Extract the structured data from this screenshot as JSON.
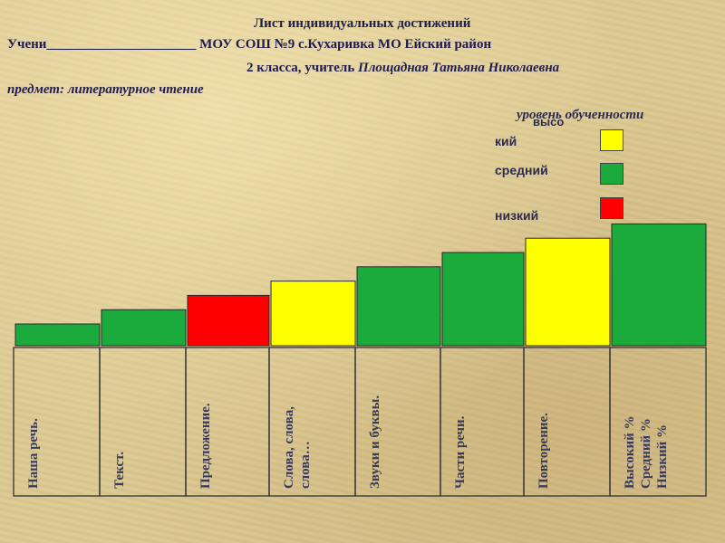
{
  "header": {
    "title": "Лист индивидуальных достижений",
    "line2": "Учени______________________ МОУ СОШ №9 с.Кухаривка МО Ейский район",
    "line3_prefix": "2 класса,   учитель ",
    "line3_teacher": "Площадная Татьяна Николаевна",
    "line4": "предмет: литературное чтение"
  },
  "legend": {
    "title": "уровень обученности",
    "high_part1": "высо",
    "high_part2": "кий",
    "mid": "средний",
    "low": "низкий"
  },
  "colors": {
    "high": "#ffff00",
    "mid": "#1aab3c",
    "low": "#ff0000"
  },
  "chart_data": {
    "type": "bar",
    "categories": [
      {
        "lines": [
          "Наша речь."
        ],
        "level": "mid",
        "value": 1
      },
      {
        "lines": [
          "Текст."
        ],
        "level": "mid",
        "value": 2
      },
      {
        "lines": [
          "Предложение."
        ],
        "level": "low",
        "value": 3
      },
      {
        "lines": [
          "Слова, слова,",
          "слова…"
        ],
        "level": "high",
        "value": 4
      },
      {
        "lines": [
          "Звуки и буквы."
        ],
        "level": "mid",
        "value": 5
      },
      {
        "lines": [
          "Части речи."
        ],
        "level": "mid",
        "value": 6
      },
      {
        "lines": [
          "Повторение."
        ],
        "level": "high",
        "value": 7
      },
      {
        "lines": [
          "Высокий %",
          "Средний  %",
          "Низкий   %"
        ],
        "level": "mid",
        "value": 8
      }
    ]
  }
}
